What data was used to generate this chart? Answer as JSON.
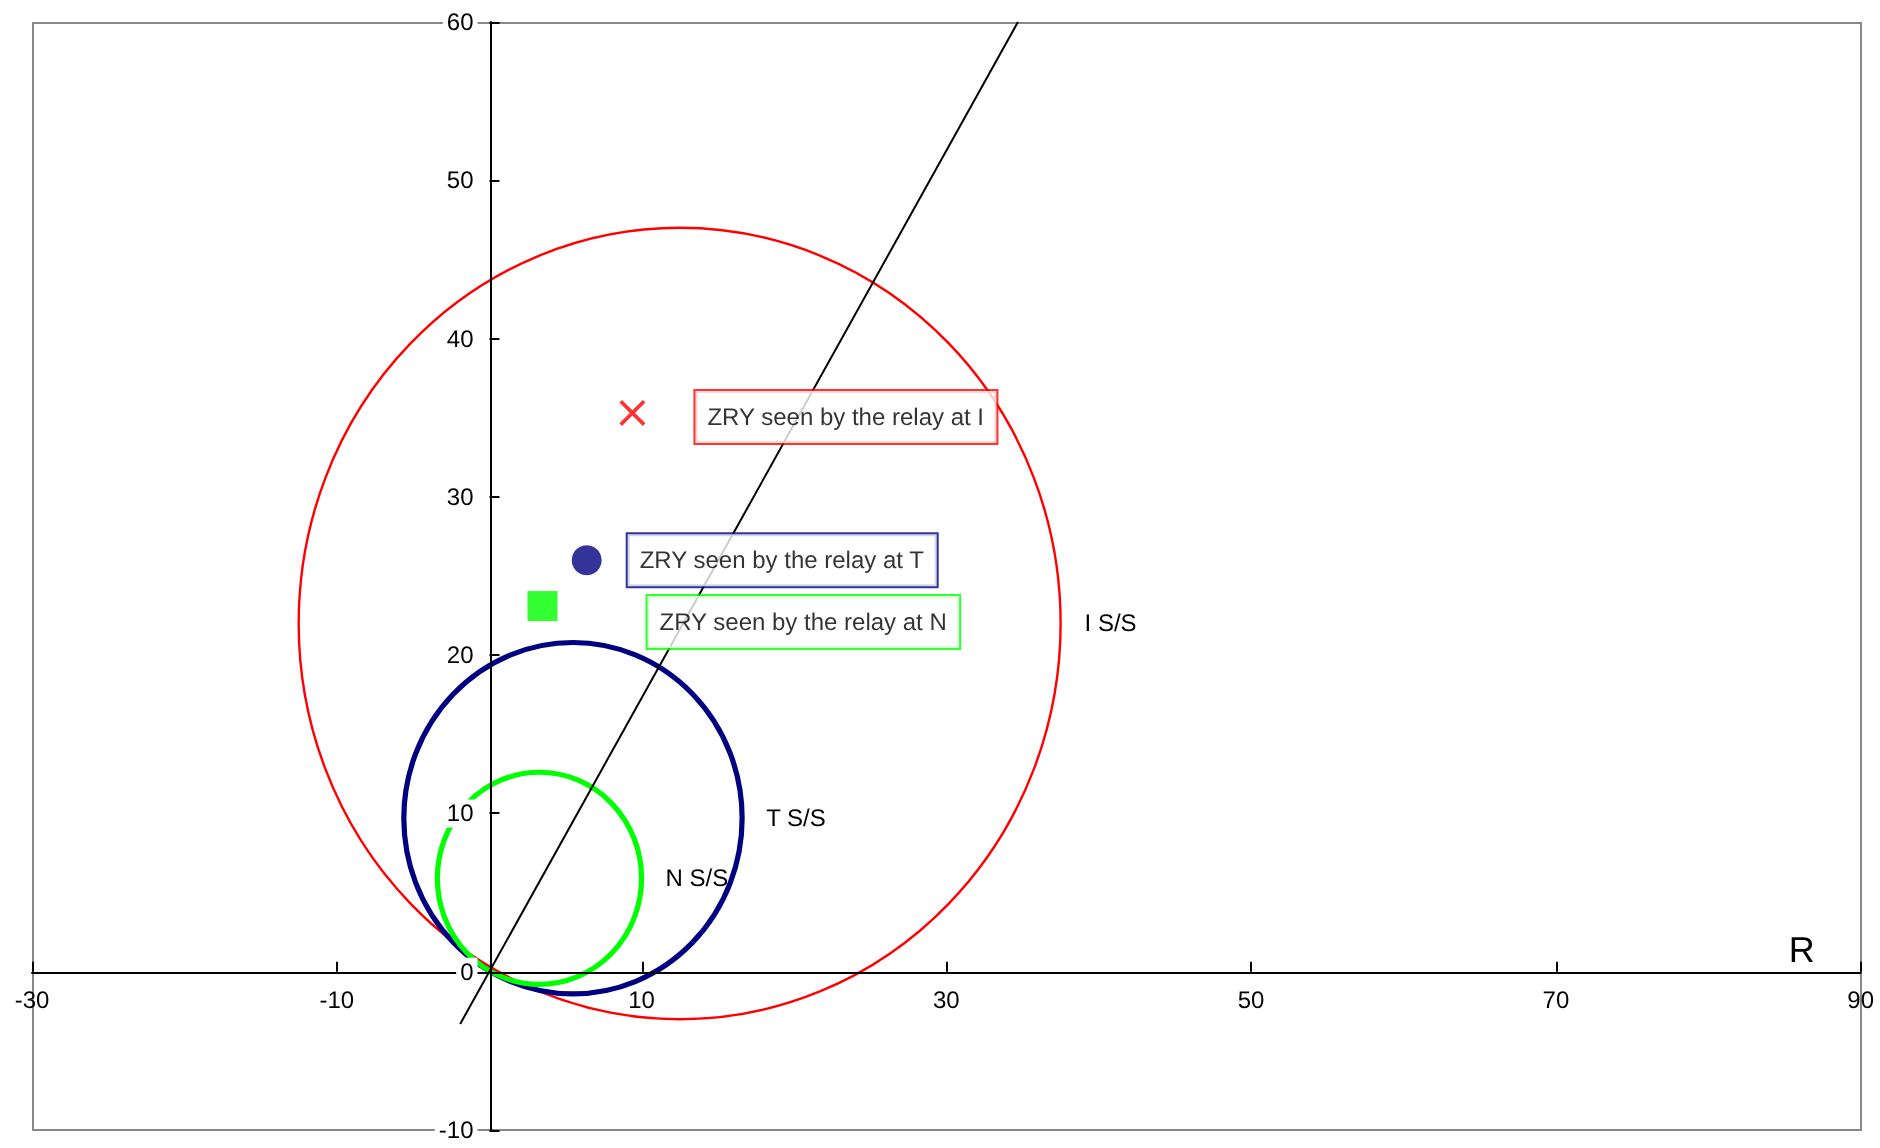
{
  "chart_data": {
    "type": "scatter",
    "xlabel": "R",
    "xlim": [
      -30,
      90
    ],
    "xticks": [
      -30,
      -10,
      10,
      30,
      50,
      70,
      90
    ],
    "ylim": [
      -10,
      60
    ],
    "yticks": [
      -10,
      0,
      10,
      20,
      30,
      40,
      50,
      60
    ],
    "grid": false,
    "legend": false,
    "annotations": [
      "I S/S",
      "T S/S",
      "N S/S"
    ],
    "series": [
      {
        "type": "line",
        "marker": "none",
        "color": "#000000",
        "x": [
          -1.9,
          34.7
        ],
        "values": [
          -3.3,
          60
        ]
      },
      {
        "name": "ZRY seen by the relay at I",
        "marker": "cross",
        "color": "#ff0000",
        "x": [
          9.4
        ],
        "values": [
          35.3
        ]
      },
      {
        "name": "ZRY seen by the relay at T",
        "marker": "circle",
        "color": "#000080",
        "x": [
          6.4
        ],
        "values": [
          26
        ]
      },
      {
        "name": "ZRY seen by the relay at N",
        "marker": "square",
        "color": "#00ff00",
        "x": [
          3.5
        ],
        "values": [
          23.1
        ]
      }
    ]
  }
}
